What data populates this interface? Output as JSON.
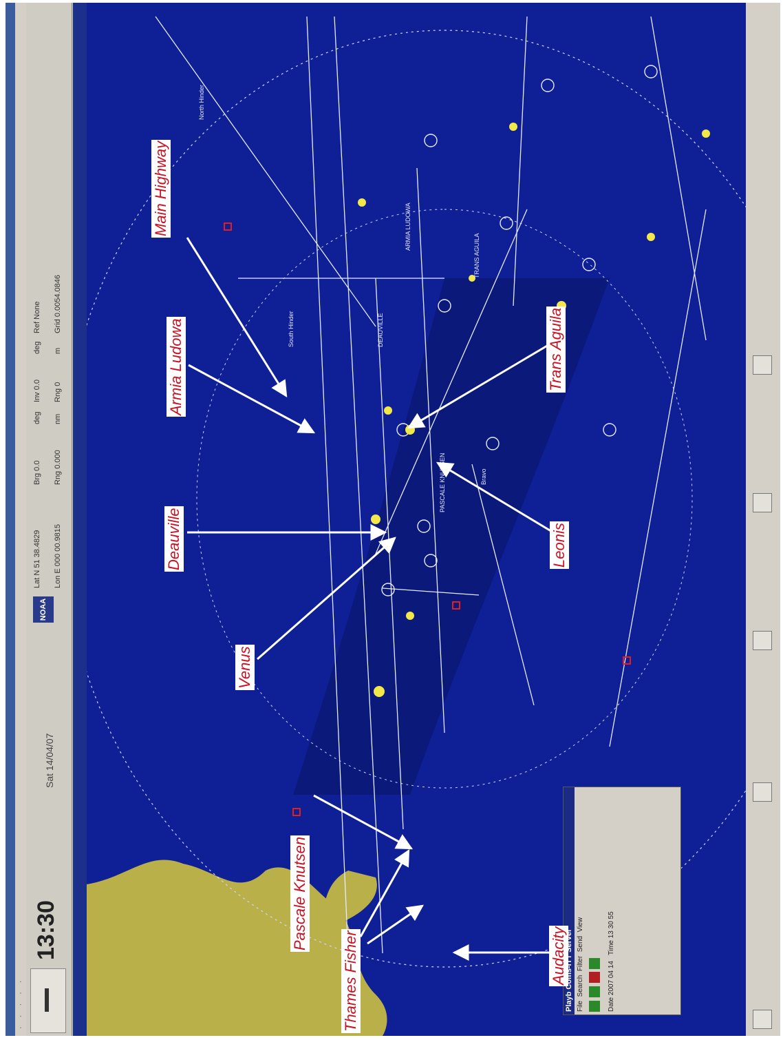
{
  "app": {
    "time": "13:30",
    "date_label": "Sat 14/04/07",
    "noaa_logo": "NOAA",
    "coords": {
      "lat": "Lat N 51 38.4829",
      "lon": "Lon E 000 00.9815",
      "brg": "Brg 0.0",
      "rng": "Rng 0.000",
      "deg1": "deg",
      "nm": "nm",
      "inv": "Inv 0.0",
      "rng2": "Rng 0",
      "deg2": "deg",
      "m": "m",
      "ref": "Ref None",
      "grid": "Grid 0.0054.0846"
    }
  },
  "annotations": [
    {
      "id": "main-highway",
      "text": "Main Highway"
    },
    {
      "id": "armia-ludowa",
      "text": "Armia Ludowa"
    },
    {
      "id": "trans-aguila",
      "text": "Trans Aguila"
    },
    {
      "id": "deauville",
      "text": "Deauville"
    },
    {
      "id": "leonis",
      "text": "Leonis"
    },
    {
      "id": "venus",
      "text": "Venus"
    },
    {
      "id": "pascale-knutsen",
      "text": "Pascale Knutsen"
    },
    {
      "id": "thames-fisher",
      "text": "Thames Fisher"
    },
    {
      "id": "audacity",
      "text": "Audacity"
    }
  ],
  "playback": {
    "title": "Playb Coms-ITT Server",
    "menu": [
      "File",
      "Search",
      "Filter",
      "Send",
      "View"
    ],
    "date": "Date 2007 04 14",
    "time": "Time 13 30 55"
  },
  "colors": {
    "sea": "#0f1f96",
    "land": "#b9b04a",
    "annotation_red": "#cc1020"
  }
}
